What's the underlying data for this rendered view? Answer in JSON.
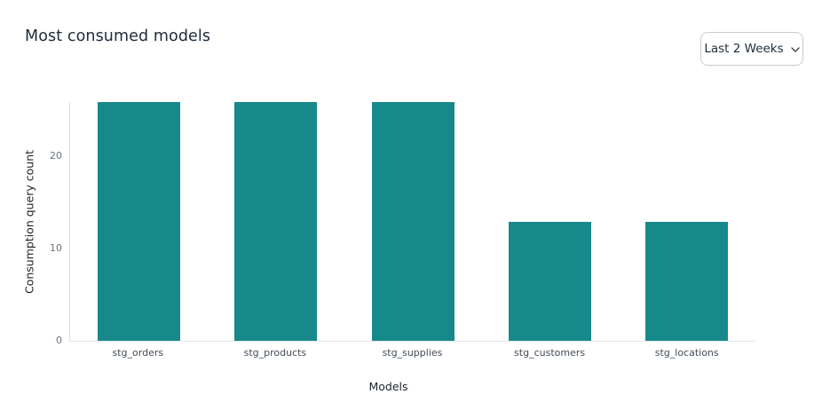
{
  "header": {
    "title": "Most consumed models"
  },
  "filter": {
    "label": "Last 2 Weeks"
  },
  "chart_data": {
    "type": "bar",
    "title": "Most consumed models",
    "categories": [
      "stg_orders",
      "stg_products",
      "stg_supplies",
      "stg_customers",
      "stg_locations"
    ],
    "values": [
      26,
      26,
      26,
      13,
      13
    ],
    "xlabel": "Models",
    "ylabel": "Consumption query count",
    "ylim": [
      0,
      26
    ],
    "yticks": [
      0,
      10,
      20
    ],
    "bar_color": "#17898B",
    "grid": false,
    "legend": "none",
    "background": "#ffffff"
  }
}
